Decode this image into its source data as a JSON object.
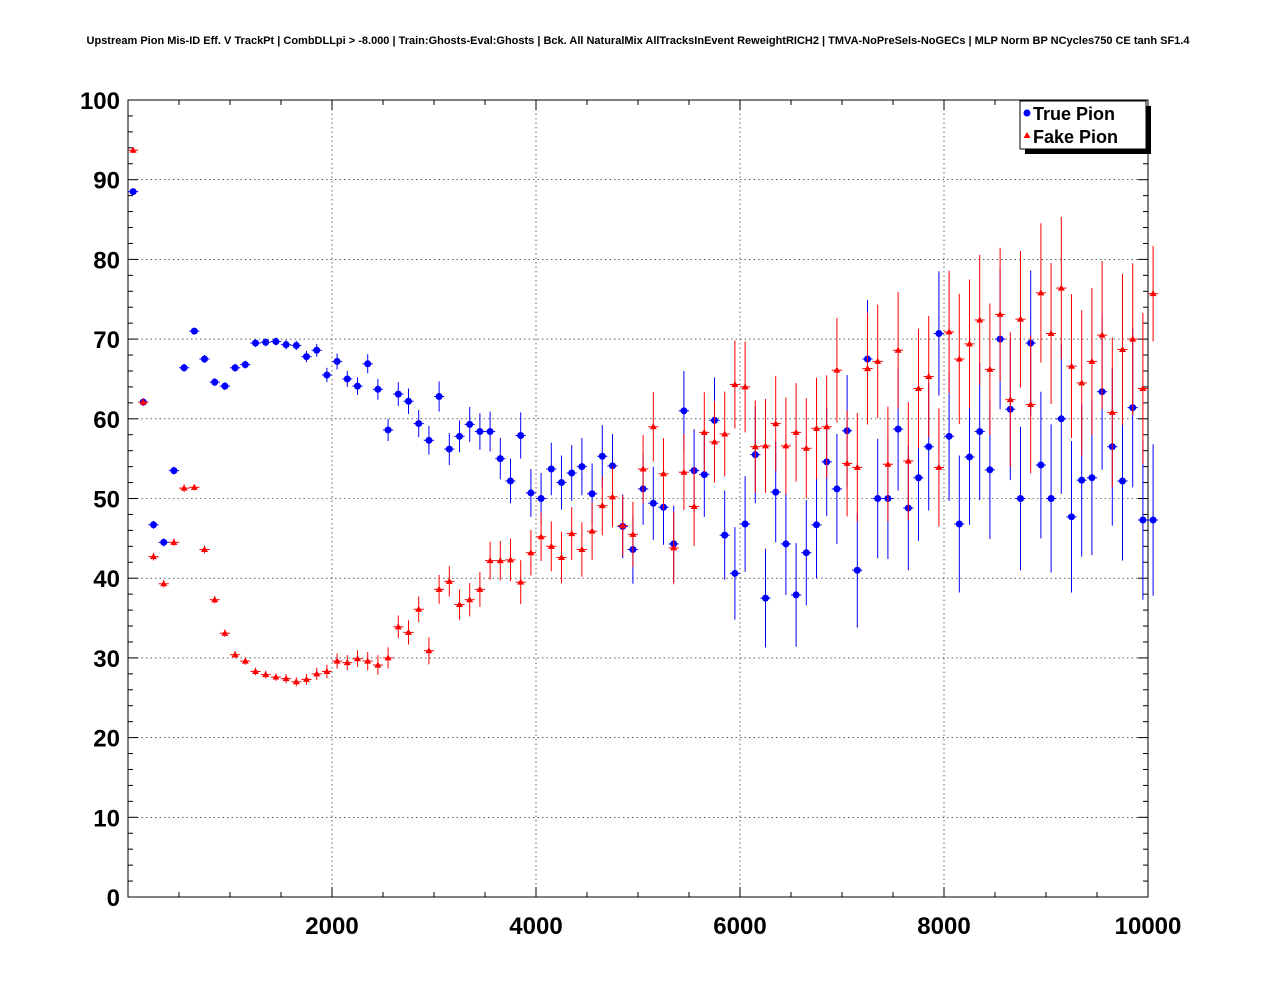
{
  "chart_data": {
    "type": "scatter",
    "title": "Upstream Pion Mis-ID Eff. V TrackPt | CombDLLpi > -8.000 | Train:Ghosts-Eval:Ghosts | Bck. All NaturalMix AllTracksInEvent ReweightRICH2 | TMVA-NoPreSels-NoGECs | MLP Norm BP NCycles750 CE tanh SF1.4",
    "xlabel": "",
    "ylabel": "",
    "xlim": [
      0,
      10000
    ],
    "ylim": [
      0,
      100
    ],
    "x_ticks": [
      2000,
      4000,
      6000,
      8000,
      10000
    ],
    "y_ticks": [
      0,
      10,
      20,
      30,
      40,
      50,
      60,
      70,
      80,
      90,
      100
    ],
    "grid": true,
    "legend_position": "top-right",
    "x": [
      50,
      150,
      250,
      350,
      450,
      550,
      650,
      750,
      850,
      950,
      1050,
      1150,
      1250,
      1350,
      1450,
      1550,
      1650,
      1750,
      1850,
      1950,
      2050,
      2150,
      2250,
      2350,
      2450,
      2550,
      2650,
      2750,
      2850,
      2950,
      3050,
      3150,
      3250,
      3350,
      3450,
      3550,
      3650,
      3750,
      3850,
      3950,
      4050,
      4150,
      4250,
      4350,
      4450,
      4550,
      4650,
      4750,
      4850,
      4950,
      5050,
      5150,
      5250,
      5350,
      5450,
      5550,
      5650,
      5750,
      5850,
      5950,
      6050,
      6150,
      6250,
      6350,
      6450,
      6550,
      6650,
      6750,
      6850,
      6950,
      7050,
      7150,
      7250,
      7350,
      7450,
      7550,
      7650,
      7750,
      7850,
      7950,
      8050,
      8150,
      8250,
      8350,
      8450,
      8550,
      8650,
      8750,
      8850,
      8950,
      9050,
      9150,
      9250,
      9350,
      9450,
      9550,
      9650,
      9750,
      9850,
      9950
    ],
    "series": [
      {
        "name": "True Pion",
        "color": "#0000ff",
        "marker": "circle",
        "values": [
          88.5,
          62.1,
          46.7,
          44.5,
          53.5,
          66.4,
          71.0,
          67.5,
          64.6,
          64.1,
          66.4,
          66.8,
          69.5,
          69.6,
          69.7,
          69.3,
          69.2,
          67.8,
          68.6,
          65.5,
          67.2,
          65.0,
          64.1,
          66.9,
          63.7,
          58.6,
          63.1,
          62.2,
          59.4,
          57.3,
          62.8,
          56.2,
          57.8,
          59.3,
          58.4,
          58.4,
          55.0,
          52.2,
          57.9,
          50.7,
          50.0,
          53.7,
          52.0,
          53.2,
          54.0,
          50.6,
          55.3,
          54.1,
          46.5,
          43.6,
          51.2,
          49.4,
          48.9,
          44.3,
          61.0,
          53.5,
          53.0,
          59.8,
          45.4,
          40.6,
          46.8,
          55.5,
          37.5,
          50.8,
          44.3,
          37.9,
          43.2,
          46.7,
          54.6,
          51.2,
          58.5,
          41.0,
          67.5,
          50.0,
          50.0,
          58.7,
          48.8,
          52.6,
          56.5,
          70.7,
          57.8,
          46.8,
          55.2,
          58.4,
          53.6,
          70.0,
          61.2,
          50.0,
          69.5,
          54.2,
          50.0,
          60.0,
          47.7,
          52.3,
          52.6,
          63.4,
          56.5,
          52.2,
          61.4,
          47.3
        ],
        "errors": [
          0.4,
          0.5,
          0.5,
          0.5,
          0.5,
          0.5,
          0.4,
          0.5,
          0.5,
          0.5,
          0.5,
          0.5,
          0.5,
          0.5,
          0.5,
          0.6,
          0.6,
          0.7,
          0.8,
          0.9,
          1.0,
          1.0,
          1.1,
          1.2,
          1.3,
          1.4,
          1.5,
          1.6,
          1.7,
          1.8,
          1.9,
          2.0,
          2.0,
          2.2,
          2.3,
          2.5,
          2.6,
          2.8,
          2.9,
          3.0,
          3.2,
          3.3,
          3.4,
          3.5,
          3.6,
          3.8,
          3.9,
          4.0,
          4.0,
          4.3,
          4.5,
          4.6,
          4.7,
          4.8,
          5.0,
          5.2,
          5.3,
          5.4,
          5.6,
          5.8,
          6.0,
          6.1,
          6.2,
          6.3,
          6.4,
          6.5,
          6.6,
          6.7,
          6.8,
          6.9,
          7.0,
          7.2,
          7.4,
          7.5,
          7.6,
          7.7,
          7.8,
          7.9,
          8.0,
          7.8,
          8.1,
          8.6,
          8.5,
          8.6,
          8.7,
          8.8,
          8.9,
          9.0,
          9.1,
          9.2,
          9.3,
          9.4,
          9.5,
          9.6,
          9.7,
          9.8,
          9.9,
          10.0,
          10.0,
          10.0
        ]
      },
      {
        "name": "Fake Pion",
        "color": "#ff0000",
        "marker": "triangle",
        "values": [
          93.7,
          62.1,
          42.7,
          39.3,
          44.5,
          51.3,
          51.4,
          43.6,
          37.3,
          33.1,
          30.4,
          29.6,
          28.3,
          27.9,
          27.6,
          27.4,
          27.0,
          27.3,
          28.0,
          28.3,
          29.6,
          29.4,
          29.9,
          29.6,
          29.1,
          30.0,
          33.9,
          33.2,
          36.1,
          30.9,
          38.6,
          39.6,
          36.7,
          37.3,
          38.6,
          42.2,
          42.2,
          42.3,
          39.5,
          43.2,
          45.2,
          44.0,
          42.6,
          45.6,
          43.6,
          45.9,
          49.1,
          50.2,
          46.6,
          45.5,
          53.7,
          59.0,
          53.1,
          43.8,
          53.3,
          49.0,
          58.3,
          57.1,
          58.1,
          64.3,
          64.0,
          56.5,
          56.6,
          59.4,
          56.6,
          58.3,
          56.3,
          58.8,
          59.0,
          66.1,
          54.4,
          53.9,
          66.3,
          67.2,
          54.3,
          68.6,
          54.7,
          63.8,
          65.3,
          53.9,
          70.9,
          67.5,
          69.4,
          72.4,
          66.2,
          73.1,
          62.4,
          72.5,
          61.8,
          75.8,
          70.7,
          76.4,
          66.6,
          64.5,
          67.2,
          70.5,
          60.8,
          68.7,
          70.0,
          63.8
        ]
      }
    ],
    "extra_points": {
      "x": [
        10050,
        10050
      ],
      "true_pion": 47.3,
      "fake_pion": 75.7
    }
  }
}
